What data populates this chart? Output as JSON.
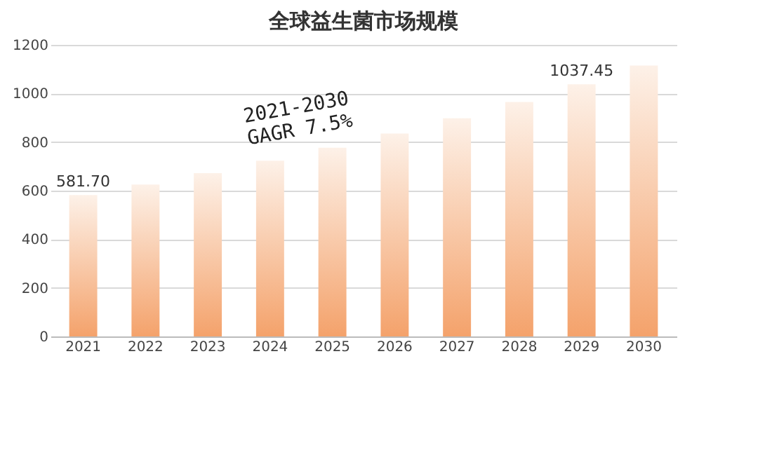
{
  "chart_data": {
    "type": "bar",
    "title": "全球益生菌市场规模",
    "categories": [
      "2021",
      "2022",
      "2023",
      "2024",
      "2025",
      "2026",
      "2027",
      "2028",
      "2029",
      "2030"
    ],
    "values": [
      581.7,
      625,
      672,
      723,
      777,
      835,
      898,
      965,
      1037.45,
      1115
    ],
    "value_labels": [
      "581.70",
      null,
      null,
      null,
      null,
      null,
      null,
      null,
      "1037.45",
      null
    ],
    "color": "#f4a26b",
    "ylim": [
      0,
      1200
    ],
    "yticks": [
      0,
      200,
      400,
      600,
      800,
      1000,
      1200
    ],
    "grid": "y",
    "annotations": [
      "2021-2030\nGAGR 7.5%"
    ]
  }
}
